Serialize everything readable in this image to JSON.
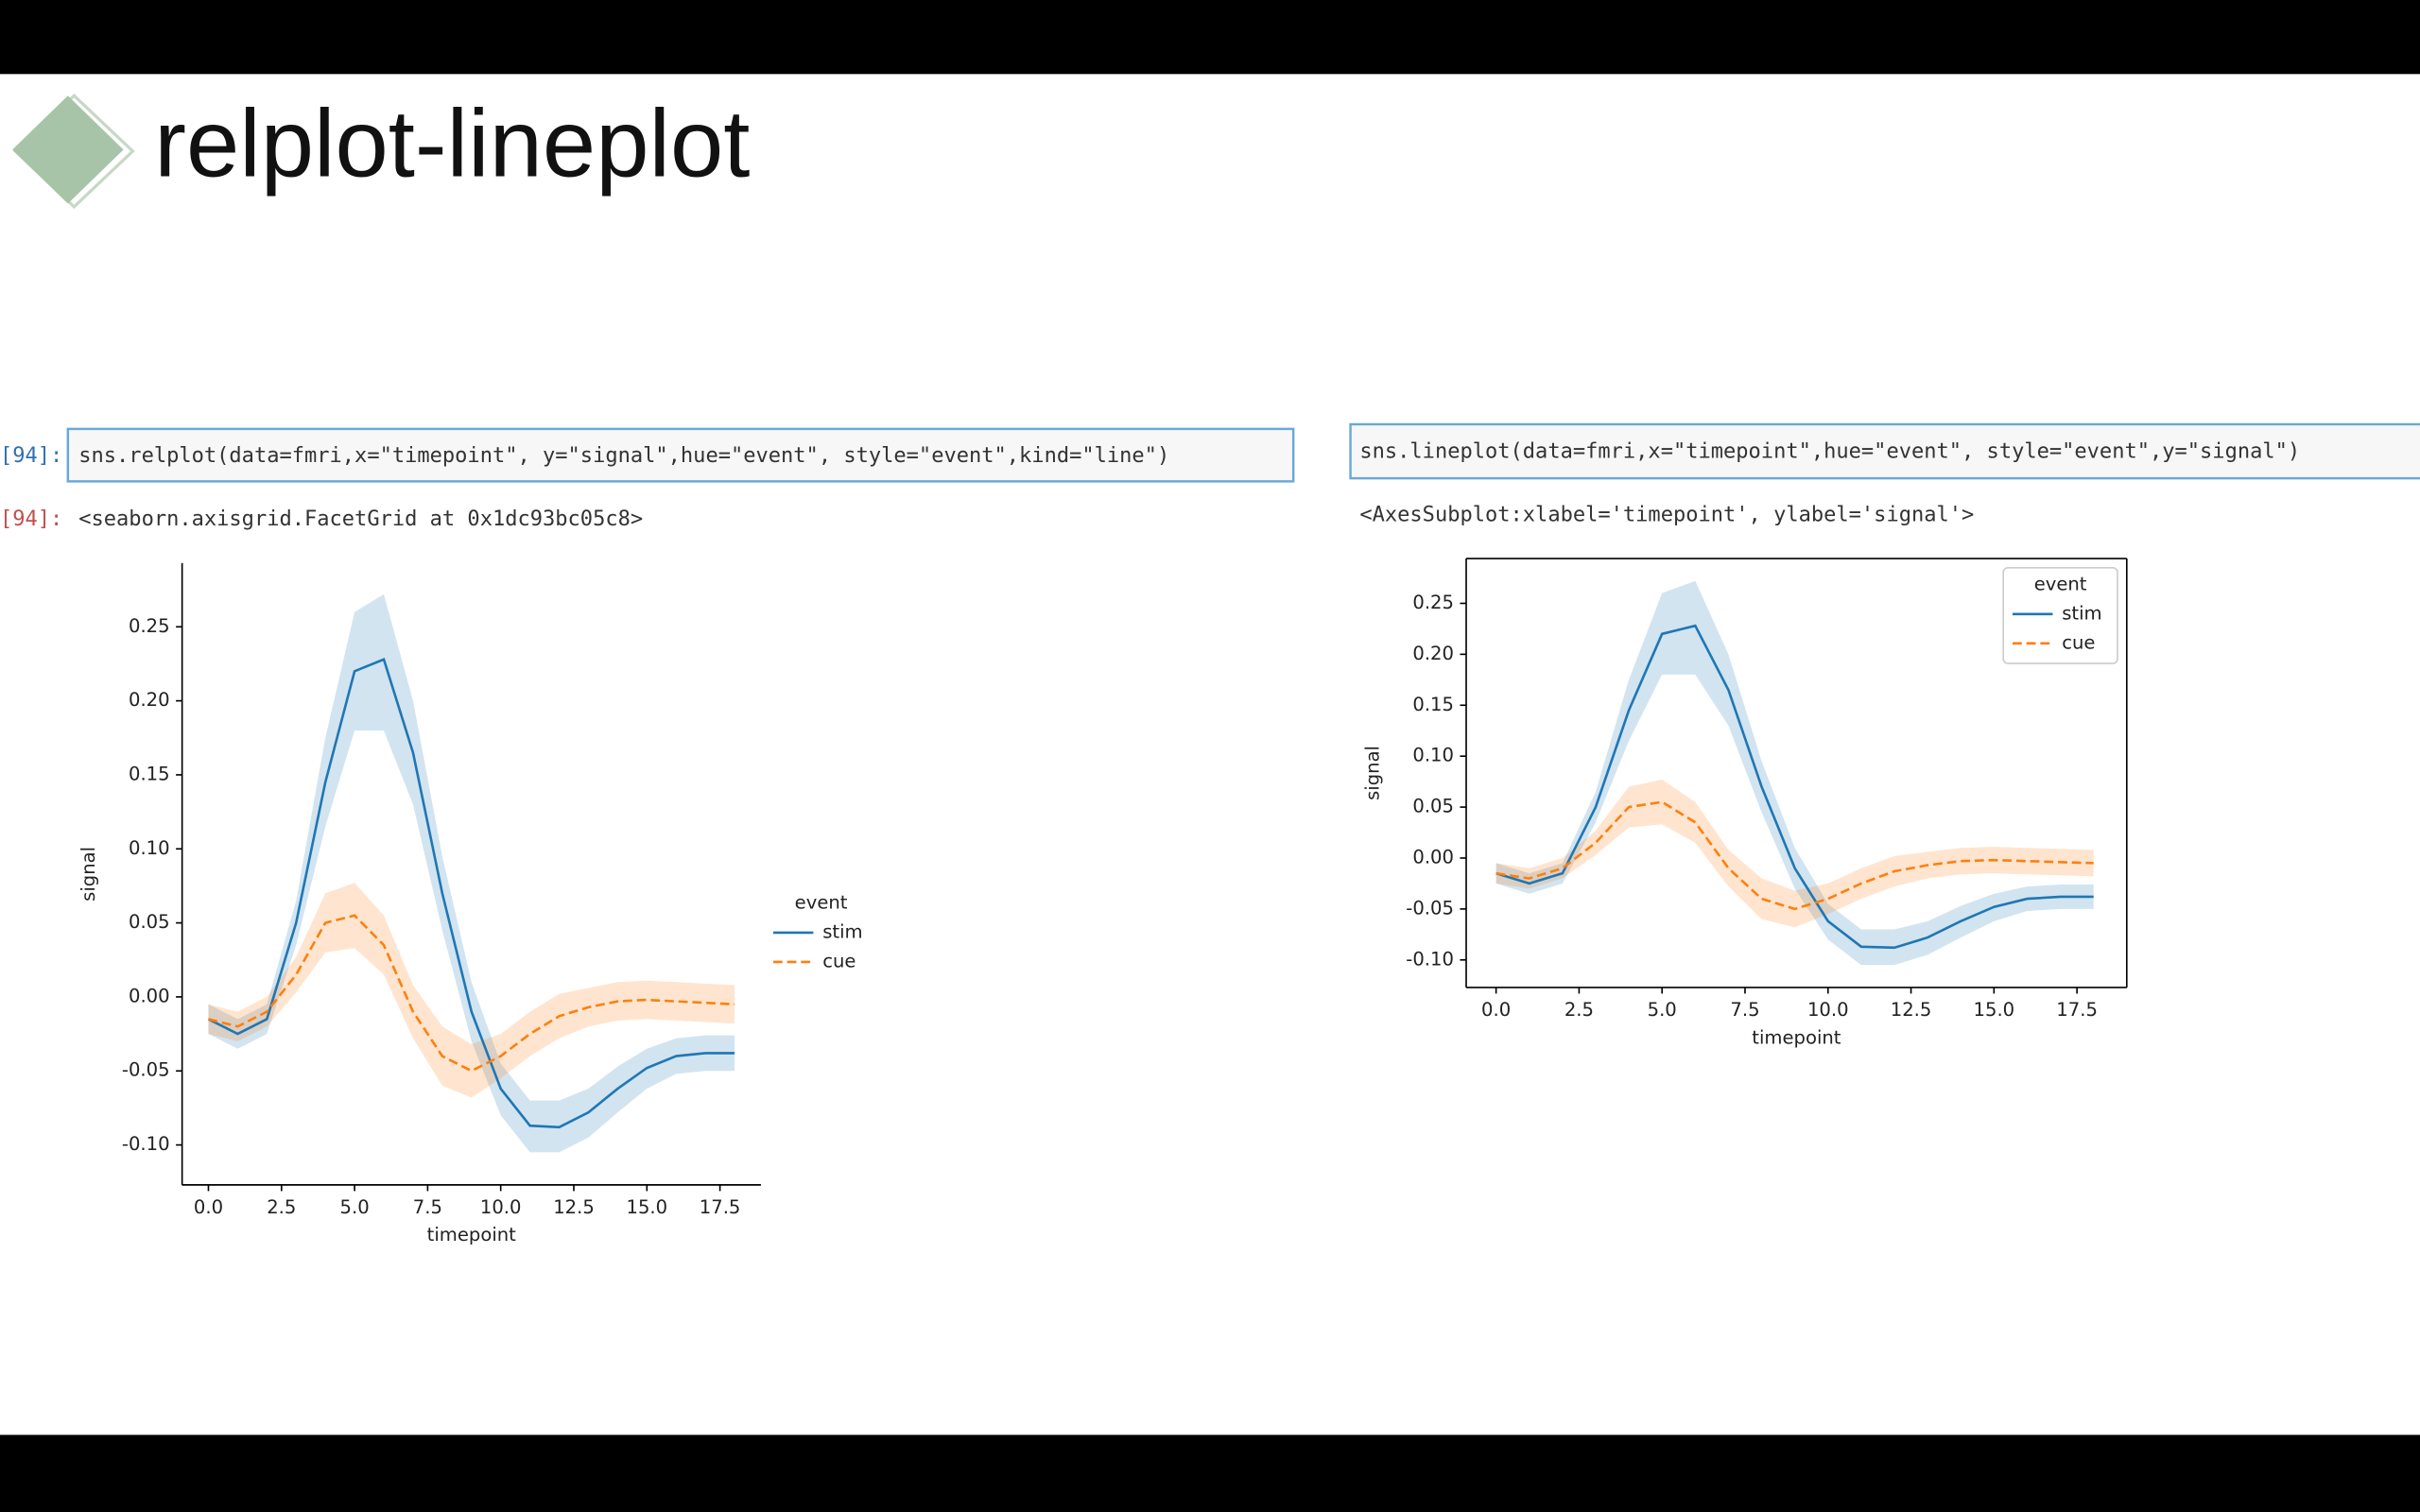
{
  "slide_title": "relplot-lineplot",
  "cells": [
    {
      "prompt": "[94]:",
      "code": "sns.relplot(data=fmri,x=\"timepoint\", y=\"signal\",hue=\"event\", style=\"event\",kind=\"line\")",
      "out_prompt": "[94]:",
      "output": "<seaborn.axisgrid.FacetGrid at 0x1dc93bc05c8>"
    },
    {
      "code": "sns.lineplot(data=fmri,x=\"timepoint\",hue=\"event\", style=\"event\",y=\"signal\")",
      "output": "<AxesSubplot:xlabel='timepoint', ylabel='signal'>"
    }
  ],
  "chart_data": [
    {
      "type": "line",
      "x_label": "timepoint",
      "y_label": "signal",
      "despine": true,
      "legend_title": "event",
      "legend_loc": "outside-right",
      "x": [
        0,
        1,
        2,
        3,
        4,
        5,
        6,
        7,
        8,
        9,
        10,
        11,
        12,
        13,
        14,
        15,
        16,
        17,
        18
      ],
      "series": [
        {
          "name": "stim",
          "color": "#1f77b4",
          "line_style": "solid",
          "values": [
            -0.015,
            -0.025,
            -0.015,
            0.05,
            0.145,
            0.22,
            0.228,
            0.165,
            0.07,
            -0.01,
            -0.062,
            -0.087,
            -0.088,
            -0.078,
            -0.062,
            -0.048,
            -0.04,
            -0.038,
            -0.038
          ],
          "lower": [
            -0.025,
            -0.035,
            -0.025,
            0.035,
            0.115,
            0.18,
            0.18,
            0.13,
            0.045,
            -0.03,
            -0.08,
            -0.105,
            -0.105,
            -0.095,
            -0.078,
            -0.062,
            -0.052,
            -0.05,
            -0.05
          ],
          "upper": [
            -0.005,
            -0.015,
            -0.005,
            0.065,
            0.175,
            0.26,
            0.272,
            0.2,
            0.095,
            0.01,
            -0.045,
            -0.07,
            -0.07,
            -0.062,
            -0.047,
            -0.035,
            -0.028,
            -0.026,
            -0.026
          ]
        },
        {
          "name": "cue",
          "color": "#ff7f0e",
          "line_style": "dashed",
          "values": [
            -0.015,
            -0.02,
            -0.01,
            0.015,
            0.05,
            0.055,
            0.035,
            -0.01,
            -0.04,
            -0.05,
            -0.04,
            -0.025,
            -0.013,
            -0.007,
            -0.003,
            -0.002,
            -0.003,
            -0.004,
            -0.005
          ],
          "lower": [
            -0.025,
            -0.03,
            -0.02,
            0.003,
            0.03,
            0.033,
            0.015,
            -0.028,
            -0.06,
            -0.068,
            -0.055,
            -0.04,
            -0.028,
            -0.02,
            -0.016,
            -0.015,
            -0.016,
            -0.017,
            -0.018
          ],
          "upper": [
            -0.005,
            -0.01,
            0,
            0.027,
            0.07,
            0.077,
            0.055,
            0.008,
            -0.02,
            -0.032,
            -0.025,
            -0.01,
            0.002,
            0.006,
            0.01,
            0.011,
            0.01,
            0.009,
            0.008
          ]
        }
      ],
      "xlim": [
        -0.9,
        18.9
      ],
      "ylim": [
        -0.127,
        0.293
      ],
      "xticks": [
        {
          "value": 0,
          "label": "0.0"
        },
        2.5,
        {
          "value": 5,
          "label": "5.0"
        },
        7.5,
        {
          "value": 10,
          "label": "10.0"
        },
        12.5,
        {
          "value": 15,
          "label": "15.0"
        },
        17.5
      ],
      "yticks": [
        {
          "value": -0.1,
          "label": "-0.10"
        },
        -0.05,
        {
          "value": 0,
          "label": "0.00"
        },
        0.05,
        {
          "value": 0.1,
          "label": "0.10"
        },
        0.15,
        {
          "value": 0.2,
          "label": "0.20"
        },
        0.25
      ]
    },
    {
      "type": "line",
      "x_label": "timepoint",
      "y_label": "signal",
      "despine": false,
      "legend_title": "event",
      "legend_loc": "upper-right",
      "x": [
        0,
        1,
        2,
        3,
        4,
        5,
        6,
        7,
        8,
        9,
        10,
        11,
        12,
        13,
        14,
        15,
        16,
        17,
        18
      ],
      "series": [
        {
          "name": "stim",
          "color": "#1f77b4",
          "line_style": "solid",
          "values": [
            -0.015,
            -0.025,
            -0.015,
            0.05,
            0.145,
            0.22,
            0.228,
            0.165,
            0.07,
            -0.01,
            -0.062,
            -0.087,
            -0.088,
            -0.078,
            -0.062,
            -0.048,
            -0.04,
            -0.038,
            -0.038
          ],
          "lower": [
            -0.025,
            -0.035,
            -0.025,
            0.035,
            0.115,
            0.18,
            0.18,
            0.13,
            0.045,
            -0.03,
            -0.08,
            -0.105,
            -0.105,
            -0.095,
            -0.078,
            -0.062,
            -0.052,
            -0.05,
            -0.05
          ],
          "upper": [
            -0.005,
            -0.015,
            -0.005,
            0.065,
            0.175,
            0.26,
            0.272,
            0.2,
            0.095,
            0.01,
            -0.045,
            -0.07,
            -0.07,
            -0.062,
            -0.047,
            -0.035,
            -0.028,
            -0.026,
            -0.026
          ]
        },
        {
          "name": "cue",
          "color": "#ff7f0e",
          "line_style": "dashed",
          "values": [
            -0.015,
            -0.02,
            -0.01,
            0.015,
            0.05,
            0.055,
            0.035,
            -0.01,
            -0.04,
            -0.05,
            -0.04,
            -0.025,
            -0.013,
            -0.007,
            -0.003,
            -0.002,
            -0.003,
            -0.004,
            -0.005
          ],
          "lower": [
            -0.025,
            -0.03,
            -0.02,
            0.003,
            0.03,
            0.033,
            0.015,
            -0.028,
            -0.06,
            -0.068,
            -0.055,
            -0.04,
            -0.028,
            -0.02,
            -0.016,
            -0.015,
            -0.016,
            -0.017,
            -0.018
          ],
          "upper": [
            -0.005,
            -0.01,
            0,
            0.027,
            0.07,
            0.077,
            0.055,
            0.008,
            -0.02,
            -0.032,
            -0.025,
            -0.01,
            0.002,
            0.006,
            0.01,
            0.011,
            0.01,
            0.009,
            0.008
          ]
        }
      ],
      "xlim": [
        -0.9,
        19
      ],
      "ylim": [
        -0.127,
        0.294
      ],
      "xticks": [
        {
          "value": 0,
          "label": "0.0"
        },
        2.5,
        {
          "value": 5,
          "label": "5.0"
        },
        7.5,
        {
          "value": 10,
          "label": "10.0"
        },
        12.5,
        {
          "value": 15,
          "label": "15.0"
        },
        17.5
      ],
      "yticks": [
        {
          "value": -0.1,
          "label": "-0.10"
        },
        -0.05,
        {
          "value": 0,
          "label": "0.00"
        },
        0.05,
        {
          "value": 0.1,
          "label": "0.10"
        },
        0.15,
        {
          "value": 0.2,
          "label": "0.20"
        },
        0.25
      ]
    }
  ]
}
